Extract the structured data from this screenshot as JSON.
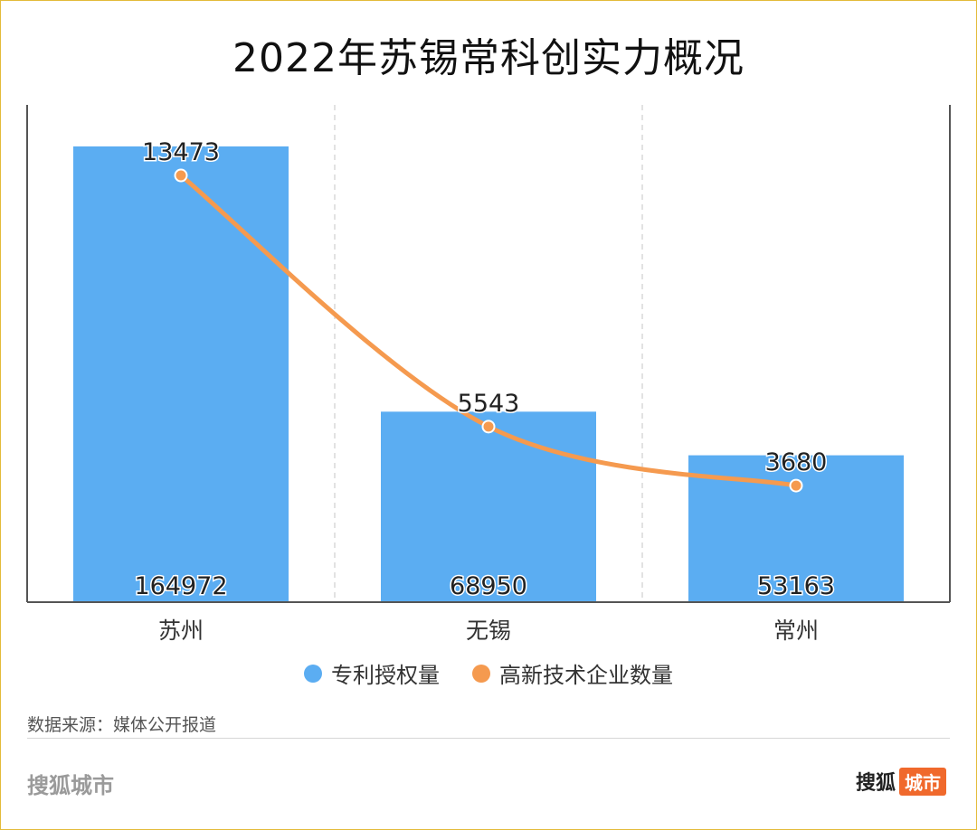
{
  "title": "2022年苏锡常科创实力概况",
  "chart_data": {
    "type": "bar",
    "categories": [
      "苏州",
      "无锡",
      "常州"
    ],
    "series": [
      {
        "name": "专利授权量",
        "type": "bar",
        "values": [
          164972,
          68950,
          53163
        ],
        "color": "#5badf2"
      },
      {
        "name": "高新技术企业数量",
        "type": "line",
        "values": [
          13473,
          5543,
          3680
        ],
        "color": "#f59a4f"
      }
    ],
    "bar_ylim": [
      0,
      180000
    ],
    "line_ylim": [
      0,
      15700
    ],
    "grid": "vertical-dashed",
    "legend": "bottom-center"
  },
  "source_label": "数据来源：媒体公开报道",
  "footer": {
    "left": "搜狐城市",
    "brand": "搜狐",
    "brand_badge": "城市"
  }
}
